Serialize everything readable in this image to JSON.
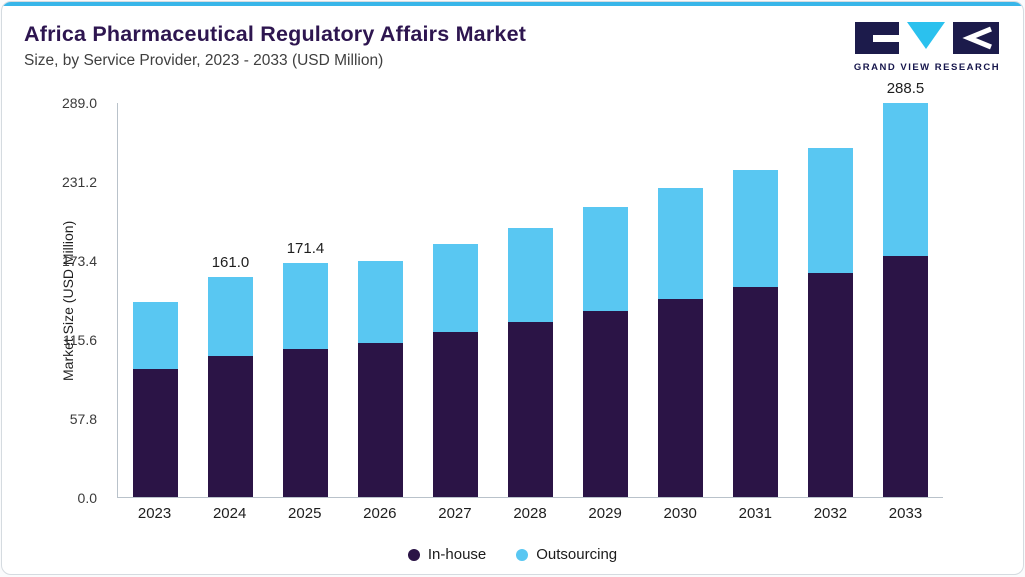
{
  "accent_color": "#38b6e9",
  "header": {
    "title": "Africa Pharmaceutical Regulatory Affairs Market",
    "subtitle": "Size, by Service Provider, 2023 - 2033 (USD Million)",
    "logo_text": "GRAND VIEW RESEARCH"
  },
  "chart_data": {
    "type": "bar",
    "stacked": true,
    "title": "Africa Pharmaceutical Regulatory Affairs Market Size, by Service Provider, 2023 - 2033 (USD Million)",
    "ylabel": "Market Size (USD Million)",
    "xlabel": "",
    "ylim": [
      0,
      289.0
    ],
    "yticks": [
      0.0,
      57.8,
      115.6,
      173.4,
      231.2,
      289.0
    ],
    "grid": false,
    "legend_position": "bottom",
    "categories": [
      "2023",
      "2024",
      "2025",
      "2026",
      "2027",
      "2028",
      "2029",
      "2030",
      "2031",
      "2032",
      "2033"
    ],
    "series": [
      {
        "name": "In-house",
        "color": "#2b1446",
        "values": [
          94,
          103,
          108,
          113,
          121,
          128,
          136,
          145,
          154,
          164,
          176
        ]
      },
      {
        "name": "Outsourcing",
        "color": "#59c7f2",
        "values": [
          49,
          58,
          63.4,
          60,
          64,
          69,
          76,
          81,
          85,
          91,
          112.5
        ]
      }
    ],
    "total_labels": [
      "",
      "161.0",
      "171.4",
      "",
      "",
      "",
      "",
      "",
      "",
      "",
      "288.5"
    ]
  }
}
